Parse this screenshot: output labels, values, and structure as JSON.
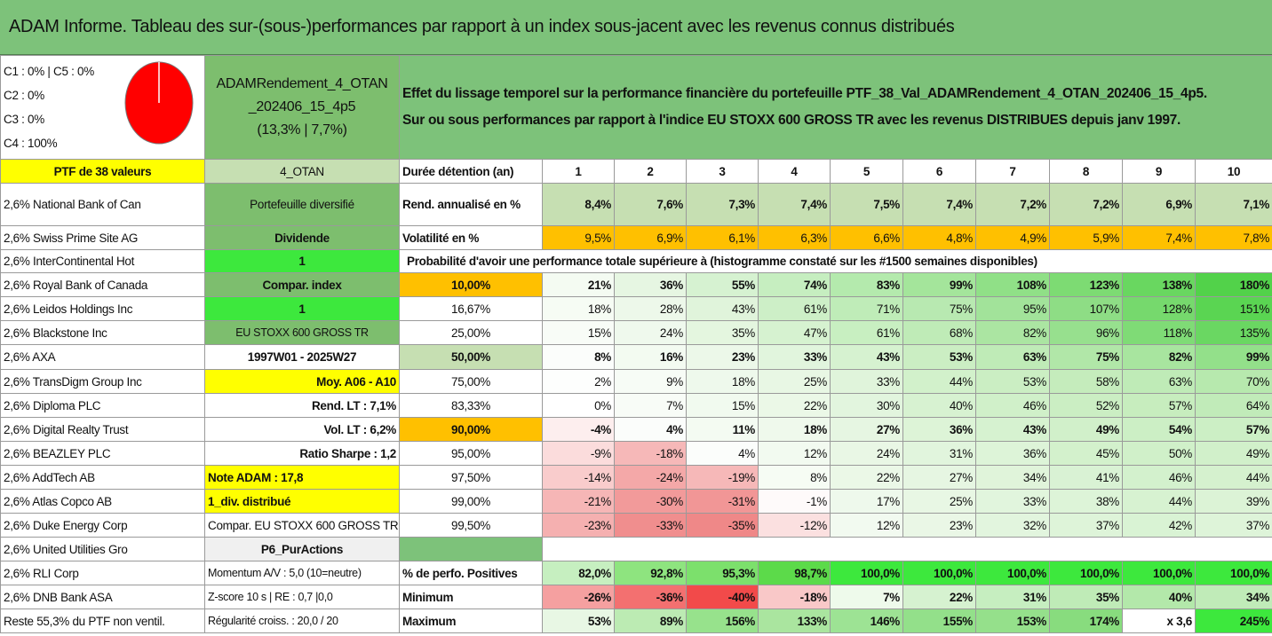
{
  "title": "ADAM Informe. Tableau des sur-(sous-)performances par rapport à un index sous-jacent avec les revenus connus distribués",
  "header": {
    "classes": [
      "C1 : 0% | C5 : 0%",
      "C2 : 0%",
      "C3 : 0%",
      "C4 : 100%"
    ],
    "pie_color": "#ff0000",
    "fund": [
      "ADAMRendement_4_OTAN",
      "_202406_15_4p5",
      "(13,3% | 7,7%)"
    ],
    "desc1": "Effet du lissage temporel sur la performance financière du portefeuille PTF_38_Val_ADAMRendement_4_OTAN_202406_15_4p5.",
    "desc2": "Sur ou sous performances par rapport à l'indice EU STOXX 600 GROSS TR avec les revenus DISTRIBUES depuis janv 1997."
  },
  "holdings_label": "PTF de 38 valeurs",
  "holdings": [
    "2,6% National Bank of Can",
    "2,6% Swiss Prime Site AG",
    "2,6% InterContinental Hot",
    "2,6% Royal Bank of Canada",
    "2,6% Leidos Holdings Inc",
    "2,6% Blackstone Inc",
    "2,6% AXA",
    "2,6% TransDigm Group Inc",
    "2,6% Diploma PLC",
    "2,6% Digital Realty Trust",
    "2,6% BEAZLEY PLC",
    "2,6% AddTech AB",
    "2,6% Atlas Copco AB",
    "2,6% Duke Energy Corp",
    "2,6% United Utilities Gro",
    "2,6% RLI Corp",
    "2,6% DNB Bank ASA",
    "Reste 55,3% du PTF non ventil."
  ],
  "info_col": [
    "4_OTAN",
    "Portefeuille diversifié",
    "Dividende",
    "1",
    "Compar. index",
    "1",
    "EU STOXX 600 GROSS TR",
    "1997W01 - 2025W27",
    "Moy. A06 - A10",
    "Rend. LT : 7,1%",
    "Vol. LT : 6,2%",
    "Ratio Sharpe : 1,2",
    "Note ADAM : 17,8",
    "1_div. distribué",
    "Compar. EU STOXX 600 GROSS TR",
    "P6_PurActions",
    "Momentum A/V : 5,0 (10=neutre)",
    "Z-score 10 s | RE : 0,7 |0,0",
    "Régularité croiss. : 20,0 / 20"
  ],
  "years_label": "Durée détention (an)",
  "years": [
    "1",
    "2",
    "3",
    "4",
    "5",
    "6",
    "7",
    "8",
    "9",
    "10"
  ],
  "rend": {
    "label": "Rend. annualisé en %",
    "values": [
      "8,4%",
      "7,6%",
      "7,3%",
      "7,4%",
      "7,5%",
      "7,4%",
      "7,2%",
      "7,2%",
      "6,9%",
      "7,1%"
    ]
  },
  "vol": {
    "label": "Volatilité en %",
    "values": [
      "9,5%",
      "6,9%",
      "6,1%",
      "6,3%",
      "6,6%",
      "4,8%",
      "4,9%",
      "5,9%",
      "7,4%",
      "7,8%"
    ]
  },
  "prob_title": "Probabilité d'avoir une performance totale supérieure à (histogramme constaté sur les #1500 semaines disponibles)",
  "prob_rows": [
    {
      "p": "10,00%",
      "v": [
        "21%",
        "36%",
        "55%",
        "74%",
        "83%",
        "99%",
        "108%",
        "123%",
        "138%",
        "180%"
      ]
    },
    {
      "p": "16,67%",
      "v": [
        "18%",
        "28%",
        "43%",
        "61%",
        "71%",
        "75%",
        "95%",
        "107%",
        "128%",
        "151%"
      ]
    },
    {
      "p": "25,00%",
      "v": [
        "15%",
        "24%",
        "35%",
        "47%",
        "61%",
        "68%",
        "82%",
        "96%",
        "118%",
        "135%"
      ]
    },
    {
      "p": "50,00%",
      "v": [
        "8%",
        "16%",
        "23%",
        "33%",
        "43%",
        "53%",
        "63%",
        "75%",
        "82%",
        "99%"
      ]
    },
    {
      "p": "75,00%",
      "v": [
        "2%",
        "9%",
        "18%",
        "25%",
        "33%",
        "44%",
        "53%",
        "58%",
        "63%",
        "70%"
      ]
    },
    {
      "p": "83,33%",
      "v": [
        "0%",
        "7%",
        "15%",
        "22%",
        "30%",
        "40%",
        "46%",
        "52%",
        "57%",
        "64%"
      ]
    },
    {
      "p": "90,00%",
      "v": [
        "-4%",
        "4%",
        "11%",
        "18%",
        "27%",
        "36%",
        "43%",
        "49%",
        "54%",
        "57%"
      ]
    },
    {
      "p": "95,00%",
      "v": [
        "-9%",
        "-18%",
        "4%",
        "12%",
        "24%",
        "31%",
        "36%",
        "45%",
        "50%",
        "49%"
      ]
    },
    {
      "p": "97,50%",
      "v": [
        "-14%",
        "-24%",
        "-19%",
        "8%",
        "22%",
        "27%",
        "34%",
        "41%",
        "46%",
        "44%"
      ]
    },
    {
      "p": "99,00%",
      "v": [
        "-21%",
        "-30%",
        "-31%",
        "-1%",
        "17%",
        "25%",
        "33%",
        "38%",
        "44%",
        "39%"
      ]
    },
    {
      "p": "99,50%",
      "v": [
        "-23%",
        "-33%",
        "-35%",
        "-12%",
        "12%",
        "23%",
        "32%",
        "37%",
        "42%",
        "37%"
      ]
    }
  ],
  "pos": {
    "label": "% de perfo. Positives",
    "values": [
      "82,0%",
      "92,8%",
      "95,3%",
      "98,7%",
      "100,0%",
      "100,0%",
      "100,0%",
      "100,0%",
      "100,0%",
      "100,0%"
    ]
  },
  "min": {
    "label": "Minimum",
    "values": [
      "-26%",
      "-36%",
      "-40%",
      "-18%",
      "7%",
      "22%",
      "31%",
      "35%",
      "40%",
      "34%"
    ]
  },
  "max": {
    "label": "Maximum",
    "values": [
      "53%",
      "89%",
      "156%",
      "133%",
      "146%",
      "155%",
      "153%",
      "174%",
      "x 3,6",
      "245%"
    ]
  },
  "colors": {
    "prob": [
      [
        "#f4fbf2",
        "#e6f6e2",
        "#d6f2d1",
        "#c6eec0",
        "#b4eaad",
        "#a4e59b",
        "#90e087",
        "#7ddb73",
        "#69d760",
        "#52d24a"
      ],
      [
        "#f6fcf4",
        "#edf8ea",
        "#e0f4db",
        "#cdefc7",
        "#bfecb8",
        "#b8e9b1",
        "#a2e39a",
        "#8edd85",
        "#76d96d",
        "#5ad552"
      ],
      [
        "#f8fcf7",
        "#eff9ed",
        "#e4f6df",
        "#d6f2d0",
        "#c8efc1",
        "#bfebb7",
        "#abe5a2",
        "#97e08e",
        "#7fdb76",
        "#6ad762"
      ],
      [
        "#fbfdfb",
        "#f3fbf1",
        "#ecf8e9",
        "#e1f5dd",
        "#d6f2d0",
        "#cbeec3",
        "#bfebb7",
        "#b1e7a8",
        "#a8e59f",
        "#93e08a"
      ],
      [
        "#fdfefd",
        "#f7fcf6",
        "#eef9ec",
        "#e8f7e4",
        "#e0f4db",
        "#d2f1cb",
        "#cbeec3",
        "#c5ecbc",
        "#bfebb7",
        "#b7e9ae"
      ],
      [
        "#ffffff",
        "#f8fcf7",
        "#f1faef",
        "#ebf8e7",
        "#e2f5de",
        "#d7f2d1",
        "#d0f0c9",
        "#cbeec3",
        "#c7edbe",
        "#c1ebb9"
      ],
      [
        "#fdeeee",
        "#fbfdfb",
        "#f4fbf2",
        "#eff9ec",
        "#e6f6e2",
        "#ddf4d7",
        "#d6f2d0",
        "#d1f0ca",
        "#ccefc5",
        "#ccefc5"
      ],
      [
        "#fbdcdc",
        "#f6b8b8",
        "#fbfdfb",
        "#f2faf0",
        "#e9f7e5",
        "#e1f5dd",
        "#ddf4d8",
        "#d3f1cc",
        "#d0f0c9",
        "#d1f0ca"
      ],
      [
        "#f9cccc",
        "#f4a8a8",
        "#f6b8b8",
        "#f6fcf4",
        "#ebf8e7",
        "#e6f6e2",
        "#e0f4da",
        "#d9f2d4",
        "#d3f1cd",
        "#d5f1ce"
      ],
      [
        "#f6b6b6",
        "#f29a9a",
        "#f19696",
        "#fefafa",
        "#eef9ec",
        "#e8f7e4",
        "#e1f5dd",
        "#ddf4d8",
        "#d7f2d1",
        "#dcf3d6"
      ],
      [
        "#f5b0b0",
        "#f08e8e",
        "#ef8888",
        "#fbe0e0",
        "#f2faf0",
        "#eaf7e6",
        "#e2f5de",
        "#def4d9",
        "#d9f3d4",
        "#def4d9"
      ]
    ],
    "pos": [
      "#c6efc0",
      "#8ee47f",
      "#7ce06c",
      "#5cda4a",
      "#3de83d",
      "#3de83d",
      "#3de83d",
      "#3de83d",
      "#3de83d",
      "#3de83d"
    ],
    "min": [
      "#f5a0a0",
      "#f37070",
      "#f24a4a",
      "#f9c8c8",
      "#eefaeb",
      "#d6f2d0",
      "#c6eec0",
      "#bfebb7",
      "#b3e8aa",
      "#c0ebb8"
    ],
    "max": [
      "#e8f7e4",
      "#bcebb3",
      "#97e28c",
      "#aae59f",
      "#9de394",
      "#93e08a",
      "#95e08b",
      "#88dc7e",
      "#ffffff",
      "#3de83d"
    ]
  }
}
